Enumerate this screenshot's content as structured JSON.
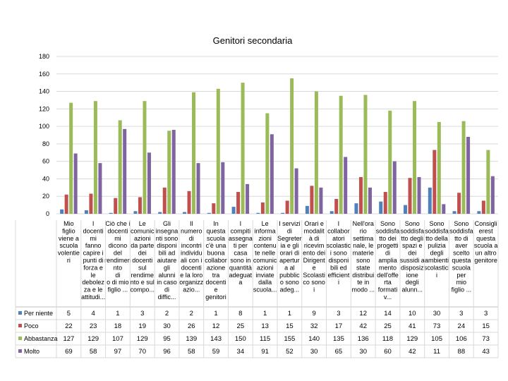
{
  "chart_data": {
    "type": "bar",
    "title": "Genitori secondaria",
    "ylim": [
      0,
      180
    ],
    "yticks": [
      0,
      20,
      40,
      60,
      80,
      100,
      120,
      140,
      160,
      180
    ],
    "grid": true,
    "legend": "bottom-table",
    "categories": [
      "Mio figlio viene a scuola volentieri",
      "I docenti mi fanno capire i punti di forza e le debolezze di mio figlio",
      "Ciò che i docenti mi dicono del rendimento di mio figlio e le attitudini",
      "Le comunicazioni da parte dei docenti sul rendimento o il compo...",
      "Gli insegnanti sono disponibili ad aiutare gli alunni in caso di difficoltà",
      "Il numero di incontri individuali con i docenti è organizzato e azio...",
      "In questa scuola c'è una buona collaborazione tra genitori",
      "I compiti assegnati per casa sono in quantità adeguata",
      "Le informazioni contenute nel comunicazioni ... scuola",
      "I servizi di segreteria e gli orari di apertura al pubblico sono ... adeg...",
      "Orari e modalità di ricevimento dei Dirigenti e della Scuola sono ...",
      "I collaboratori scolastici sono disponibili ed efficienti",
      "Nell'ora settimanale le materie sono state distribuite in modo ...",
      "Sono soddisfatto dei progetti di ampliamento dell'offerta formativa",
      "Sono soddisfatto degli spazi e sussidi a disposizione degli alunni",
      "Sono soddisfatto della pulizia dei ambienti scolastici",
      "Consiglierei questa scuola a un altro genitore",
      "Sono soddisfatto di mio figlio"
    ],
    "category_labels": [
      [
        "Mio",
        "figlio",
        "viene a",
        "scuola",
        "volentie",
        "ri"
      ],
      [
        "I",
        "docenti",
        "mi",
        "fanno",
        "capire i",
        "punti di",
        "forza e",
        "le",
        "debolez",
        "za e le",
        "attitudi..."
      ],
      [
        "Ciò che i",
        "docenti",
        "mi",
        "dicono",
        "del",
        "rendimen",
        "nto",
        "di",
        "o di mio",
        "figlio ..."
      ],
      [
        "Le",
        "comunic",
        "azioni",
        "da parte",
        "dei",
        "docenti",
        "sul",
        "rendime",
        "nto e sul",
        "compo..."
      ],
      [
        "Gli",
        "insegna",
        "nti sono",
        "disponi",
        "bili ad",
        "aiutare",
        "gli",
        "alunni",
        "in caso",
        "di",
        "diffic..."
      ],
      [
        "Il",
        "numero",
        "di",
        "incontri",
        "individu",
        "ali con i",
        "docenti",
        "e la loro",
        "organizz",
        "azio..."
      ],
      [
        "In",
        "questa",
        "scuola",
        "c'è una",
        "buona",
        "collabor",
        "azione",
        "tra",
        "docenti",
        "e",
        "genitori"
      ],
      [
        "I",
        "compiti",
        "assegna",
        "ti per",
        "casa",
        "sono in",
        "quantità",
        "adeguat",
        "a"
      ],
      [
        "Le",
        "informa",
        "zioni",
        "contenu",
        "te nelle",
        "comunic",
        "azioni",
        "inviate",
        "dalla",
        "scuola..."
      ],
      [
        "I servizi",
        "di",
        "Segreter",
        "ia e gli",
        "orari di",
        "apertur",
        "a al",
        "pubblic",
        "o sono",
        "adeg..."
      ],
      [
        "Orari e",
        "modalit",
        "à di",
        "ricevim",
        "ento dei",
        "Dirigent",
        "e",
        "Scolasti",
        "co sono",
        "i"
      ],
      [
        "I",
        "collabor",
        "atori",
        "scolastic",
        "i sono",
        "disponi",
        "bili ed",
        "efficient",
        "i"
      ],
      [
        "Nell'ora",
        "rio",
        "settima",
        "nale, le",
        "materie",
        "sono",
        "state",
        "distribui",
        "te in",
        "modo ..."
      ],
      [
        "Sono",
        "soddisfa",
        "tto dei",
        "progetti",
        "di",
        "amplia",
        "mento",
        "dell'offe",
        "rta",
        "formati",
        "v..."
      ],
      [
        "Sono",
        "soddisfa",
        "tto degli",
        "spazi e",
        "dei",
        "sussidi a",
        "disposiz",
        "ione",
        "degli",
        "alunn..."
      ],
      [
        "Sono",
        "soddisfa",
        "tto della",
        "pulizia",
        "degli",
        "ambienti",
        "scolastici",
        "i"
      ],
      [
        "Sono",
        "soddisfa",
        "tto di",
        "aver",
        "scelto",
        "questa",
        "scuola",
        "per",
        "mio",
        "figlio ..."
      ],
      [
        "Consigli",
        "erest",
        "questa",
        "scuola a",
        "un altro",
        "genitore"
      ]
    ],
    "series": [
      {
        "name": "Per niente",
        "color": "#4f81bd",
        "values": [
          5,
          4,
          1,
          3,
          2,
          2,
          1,
          8,
          1,
          1,
          9,
          3,
          12,
          14,
          10,
          30,
          3,
          3
        ]
      },
      {
        "name": "Poco",
        "color": "#c0504d",
        "values": [
          22,
          23,
          18,
          19,
          30,
          26,
          12,
          25,
          13,
          15,
          32,
          17,
          42,
          25,
          41,
          73,
          24,
          15
        ]
      },
      {
        "name": "Abbastanza",
        "color": "#9bbb59",
        "values": [
          127,
          129,
          107,
          129,
          95,
          139,
          143,
          150,
          115,
          155,
          140,
          135,
          136,
          118,
          129,
          105,
          106,
          73
        ]
      },
      {
        "name": "Molto",
        "color": "#8064a2",
        "values": [
          69,
          58,
          97,
          70,
          96,
          58,
          59,
          34,
          91,
          52,
          30,
          65,
          30,
          60,
          42,
          11,
          88,
          43
        ]
      }
    ]
  }
}
